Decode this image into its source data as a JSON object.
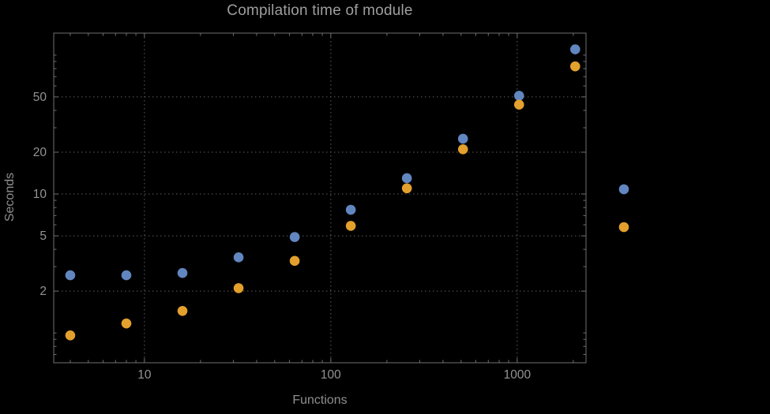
{
  "colors": {
    "background": "#000000",
    "frame": "#6f6f6f",
    "grid": "#5e5e5e",
    "tick_text": "#949494",
    "title_text": "#9e9e9e"
  },
  "chart_data": {
    "type": "scatter",
    "title": "Compilation time of module",
    "xlabel": "Functions",
    "ylabel": "Seconds",
    "x_scale": "log",
    "y_scale": "log",
    "xlim": [
      3.26,
      2340
    ],
    "ylim": [
      0.61,
      144
    ],
    "x_ticks": [
      10,
      100,
      1000
    ],
    "y_ticks": [
      2,
      5,
      10,
      20,
      50
    ],
    "grid": {
      "style": "dotted",
      "on": true
    },
    "legend": {
      "position": "right",
      "labels_visible": false
    },
    "x": [
      4,
      8,
      16,
      32,
      64,
      128,
      256,
      512,
      1024,
      2048
    ],
    "series": [
      {
        "name": "series-blue",
        "color": "#6186C0",
        "values": [
          2.6,
          2.6,
          2.7,
          3.5,
          4.9,
          7.7,
          13,
          25,
          51,
          110
        ]
      },
      {
        "name": "series-orange",
        "color": "#E3A02D",
        "values": [
          0.96,
          1.17,
          1.44,
          2.1,
          3.3,
          5.9,
          11,
          21,
          44,
          83
        ]
      }
    ]
  }
}
